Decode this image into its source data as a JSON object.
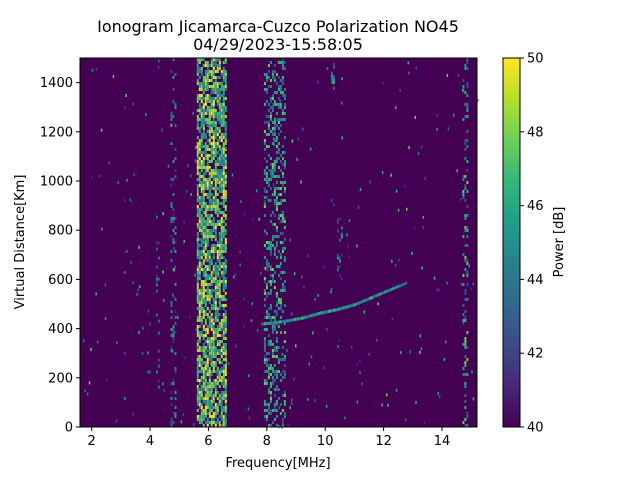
{
  "chart_data": {
    "type": "heatmap",
    "title": "Ionogram Jicamarca-Cuzco Polarization NO45",
    "subtitle": "04/29/2023-15:58:05",
    "xlabel": "Frequency[MHz]",
    "ylabel": "Virtual Distance[Km]",
    "xlim": [
      1.6,
      15.2
    ],
    "ylim": [
      0,
      1500
    ],
    "xticks": [
      2,
      4,
      6,
      8,
      10,
      12,
      14
    ],
    "yticks": [
      0,
      200,
      400,
      600,
      800,
      1000,
      1200,
      1400
    ],
    "colorbar": {
      "label": "Power [dB]",
      "range": [
        40,
        50
      ],
      "ticks": [
        40,
        42,
        44,
        46,
        48,
        50
      ],
      "colormap": "viridis",
      "colors": [
        "#440154",
        "#482878",
        "#3e4a89",
        "#31688e",
        "#26828e",
        "#1f9e89",
        "#35b779",
        "#6ece58",
        "#b5de2b",
        "#fde725"
      ]
    },
    "background_db": 40,
    "bands": [
      {
        "f_start": 5.6,
        "f_end": 6.6,
        "h_start": 0,
        "h_end": 1500,
        "power_db": 50,
        "fill": 0.75
      },
      {
        "f_start": 7.9,
        "f_end": 8.6,
        "h_start": 0,
        "h_end": 1500,
        "power_db": 48,
        "fill": 0.35
      },
      {
        "f_start": 4.7,
        "f_end": 4.85,
        "h_start": 0,
        "h_end": 1500,
        "power_db": 46,
        "fill": 0.25
      },
      {
        "f_start": 4.2,
        "f_end": 4.3,
        "h_start": 0,
        "h_end": 900,
        "power_db": 45,
        "fill": 0.15
      },
      {
        "f_start": 14.7,
        "f_end": 14.9,
        "h_start": 0,
        "h_end": 1500,
        "power_db": 48,
        "fill": 0.25
      },
      {
        "f_start": 3.1,
        "f_end": 3.2,
        "h_start": 0,
        "h_end": 1500,
        "power_db": 44,
        "fill": 0.08
      },
      {
        "f_start": 10.4,
        "f_end": 10.6,
        "h_start": 600,
        "h_end": 900,
        "power_db": 46,
        "fill": 0.2
      },
      {
        "f_start": 10.2,
        "f_end": 10.3,
        "h_start": 1380,
        "h_end": 1480,
        "power_db": 46,
        "fill": 0.4
      }
    ],
    "trace": [
      {
        "f": 7.8,
        "h": 420
      },
      {
        "f": 8.5,
        "h": 430
      },
      {
        "f": 9.2,
        "h": 445
      },
      {
        "f": 9.8,
        "h": 465
      },
      {
        "f": 10.4,
        "h": 480
      },
      {
        "f": 11.0,
        "h": 500
      },
      {
        "f": 11.8,
        "h": 540
      },
      {
        "f": 12.8,
        "h": 590
      }
    ],
    "trace_power_db": 47
  }
}
